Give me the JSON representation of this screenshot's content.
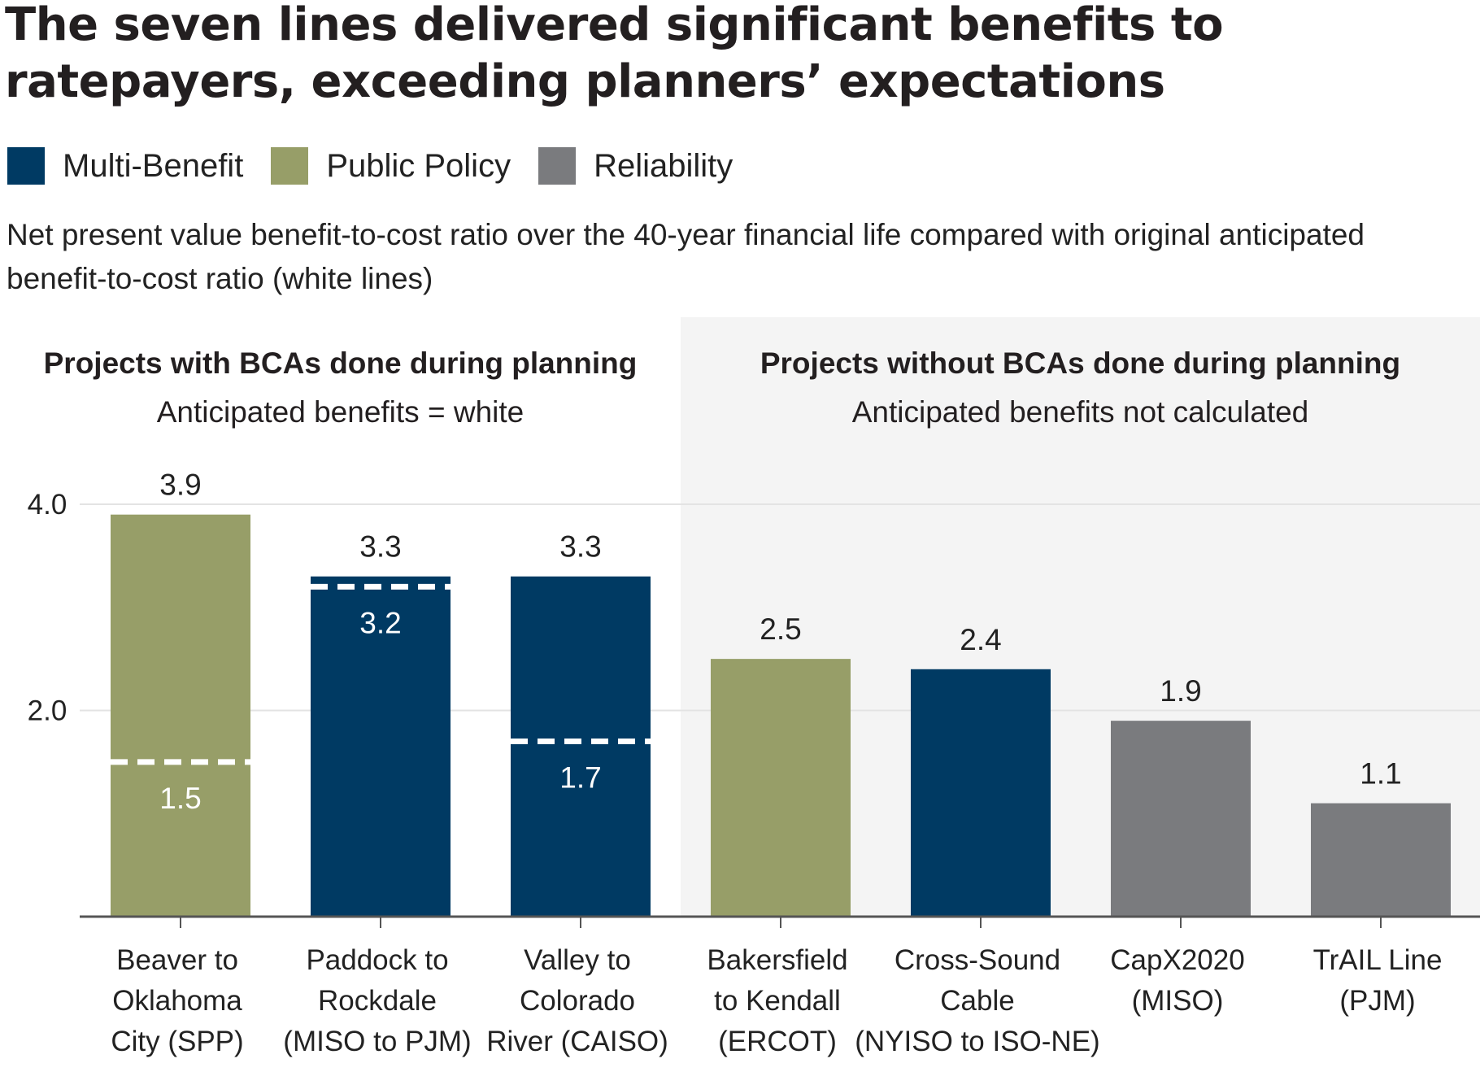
{
  "chart_data": {
    "type": "bar",
    "title": "The seven lines delivered significant benefits to ratepayers, exceeding planners’ expectations",
    "subtitle": "Net present value benefit-to-cost ratio over the 40-year financial life compared with original anticipated benefit-to-cost ratio (white lines)",
    "legend": [
      {
        "name": "Multi-Benefit",
        "color": "#003a63"
      },
      {
        "name": "Public Policy",
        "color": "#979e68"
      },
      {
        "name": "Reliability",
        "color": "#7a7b7e"
      }
    ],
    "legend_placement": "top-left",
    "ylim": [
      0,
      4.0
    ],
    "yticks": [
      {
        "value": 2.0,
        "label": "2.0"
      },
      {
        "value": 4.0,
        "label": "4.0"
      }
    ],
    "grid": true,
    "groups": [
      {
        "heading": "Projects with BCAs done during planning",
        "subheading": "Anticipated benefits = white",
        "shaded": false,
        "count": 3
      },
      {
        "heading": "Projects without BCAs done during planning",
        "subheading": "Anticipated benefits not calculated",
        "shaded": true,
        "count": 4
      }
    ],
    "bars": [
      {
        "category": [
          "Beaver to",
          "Oklahoma",
          "City (SPP)"
        ],
        "value": 3.9,
        "value_label": "3.9",
        "type": "Public Policy",
        "anticipated": 1.5,
        "anticipated_label": "1.5"
      },
      {
        "category": [
          "Paddock to",
          "Rockdale",
          "(MISO to PJM)"
        ],
        "value": 3.3,
        "value_label": "3.3",
        "type": "Multi-Benefit",
        "anticipated": 3.2,
        "anticipated_label": "3.2"
      },
      {
        "category": [
          "Valley to",
          "Colorado",
          "River (CAISO)"
        ],
        "value": 3.3,
        "value_label": "3.3",
        "type": "Multi-Benefit",
        "anticipated": 1.7,
        "anticipated_label": "1.7"
      },
      {
        "category": [
          "Bakersfield",
          "to Kendall",
          "(ERCOT)"
        ],
        "value": 2.5,
        "value_label": "2.5",
        "type": "Public Policy",
        "anticipated": null,
        "anticipated_label": null
      },
      {
        "category": [
          "Cross-Sound",
          "Cable",
          "(NYISO to ISO-NE)"
        ],
        "value": 2.4,
        "value_label": "2.4",
        "type": "Multi-Benefit",
        "anticipated": null,
        "anticipated_label": null
      },
      {
        "category": [
          "CapX2020",
          "(MISO)"
        ],
        "value": 1.9,
        "value_label": "1.9",
        "type": "Reliability",
        "anticipated": null,
        "anticipated_label": null
      },
      {
        "category": [
          "TrAIL Line",
          "(PJM)"
        ],
        "value": 1.1,
        "value_label": "1.1",
        "type": "Reliability",
        "anticipated": null,
        "anticipated_label": null
      }
    ]
  }
}
